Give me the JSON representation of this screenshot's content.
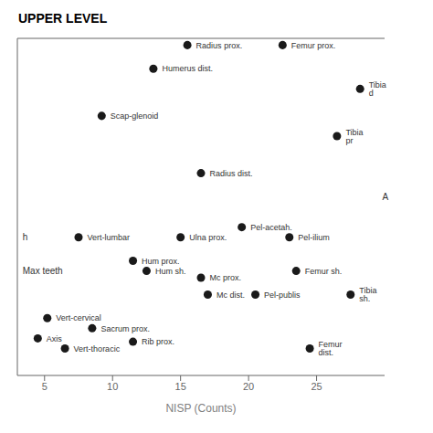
{
  "chart_data": {
    "type": "scatter",
    "title": "UPPER LEVEL",
    "xlabel": "NISP (Counts)",
    "x": [
      15.5,
      22.5,
      13.0,
      28.2,
      9.2,
      26.5,
      16.5,
      19.5,
      15.0,
      23.0,
      7.5,
      11.5,
      12.5,
      16.5,
      23.5,
      17.0,
      20.5,
      27.5,
      5.2,
      8.5,
      4.5,
      11.5,
      6.5,
      24.5
    ],
    "values": [
      98,
      98,
      91,
      85,
      77,
      71,
      60,
      44,
      41,
      41,
      41,
      34,
      31,
      29,
      31,
      24,
      24,
      24,
      17,
      14,
      11,
      10,
      8,
      8
    ],
    "labels": [
      "Radius prox.",
      "Femur prox.",
      "Humerus dist.",
      "Tibia d",
      "Scap-glenoid",
      "Tibia pr",
      "Radius dist.",
      "Pel-acetah.",
      "Ulna prox.",
      "Pel-ilium",
      "Vert-lumbar",
      "Hum prox.",
      "Hum sh.",
      "Mc prox.",
      "Femur sh.",
      "Mc dist.",
      "Pel-publis",
      "Tibia sh.",
      "Vert-cervical",
      "Sacrum prox.",
      "Axis",
      "Rib prox.",
      "Vert-thoracic",
      "Femur dist."
    ],
    "color": "#1a1a1a",
    "xlim": [
      3,
      30
    ],
    "xticks": [
      5,
      10,
      15,
      20,
      25
    ],
    "ylim": [
      0,
      100
    ],
    "yticks": [],
    "tick_labels": "x",
    "annotations": [
      {
        "text": "h",
        "x": 3.05,
        "y": 41
      },
      {
        "text": "Max teeth",
        "x": 3.05,
        "y": 31
      },
      {
        "text": "A",
        "x": 29.5,
        "y": 53
      }
    ]
  }
}
